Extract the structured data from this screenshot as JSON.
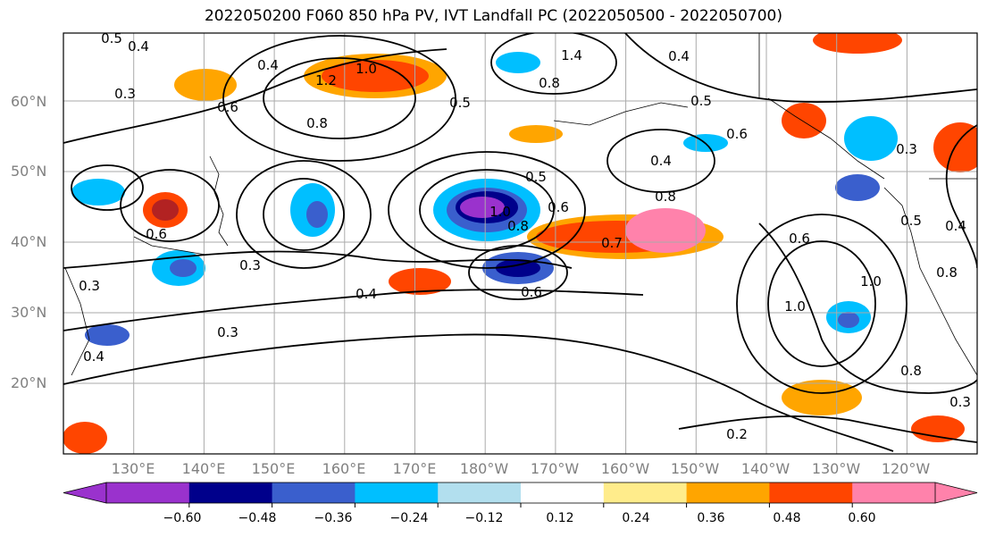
{
  "title": "2022050200 F060 850 hPa PV, IVT Landfall PC (2022050500 - 2022050700)",
  "lat_labels": [
    "60°N",
    "50°N",
    "40°N",
    "30°N",
    "20°N"
  ],
  "lon_labels": [
    "130°E",
    "140°E",
    "150°E",
    "160°E",
    "170°E",
    "180°W",
    "170°W",
    "160°W",
    "150°W",
    "140°W",
    "130°W",
    "120°W"
  ],
  "colorbar": {
    "colors": [
      "#9a32cd",
      "#00008b",
      "#3a5fcd",
      "#00bfff",
      "#b2dfee",
      "#ffffff",
      "#ffec8b",
      "#ffa500",
      "#ff4500",
      "#b22222",
      "#ff82ab"
    ],
    "tick_labels": [
      "−0.60",
      "−0.48",
      "−0.36",
      "−0.24",
      "−0.12",
      "0.12",
      "0.24",
      "0.36",
      "0.48",
      "0.60"
    ]
  },
  "contour_labels": [
    "0.4",
    "0.5",
    "0.3",
    "0.6",
    "0.4",
    "1.0",
    "1.2",
    "0.8",
    "0.5",
    "1.4",
    "0.8",
    "0.4",
    "0.5",
    "0.6",
    "0.4",
    "0.8",
    "0.5",
    "0.6",
    "1.0",
    "0.8",
    "0.7",
    "0.6",
    "0.3",
    "0.4",
    "0.3",
    "0.4",
    "0.6",
    "0.3",
    "0.5",
    "0.4",
    "0.8",
    "1.0",
    "0.8",
    "0.2",
    "1.0",
    "0.3",
    "0.6",
    "0.3"
  ]
}
